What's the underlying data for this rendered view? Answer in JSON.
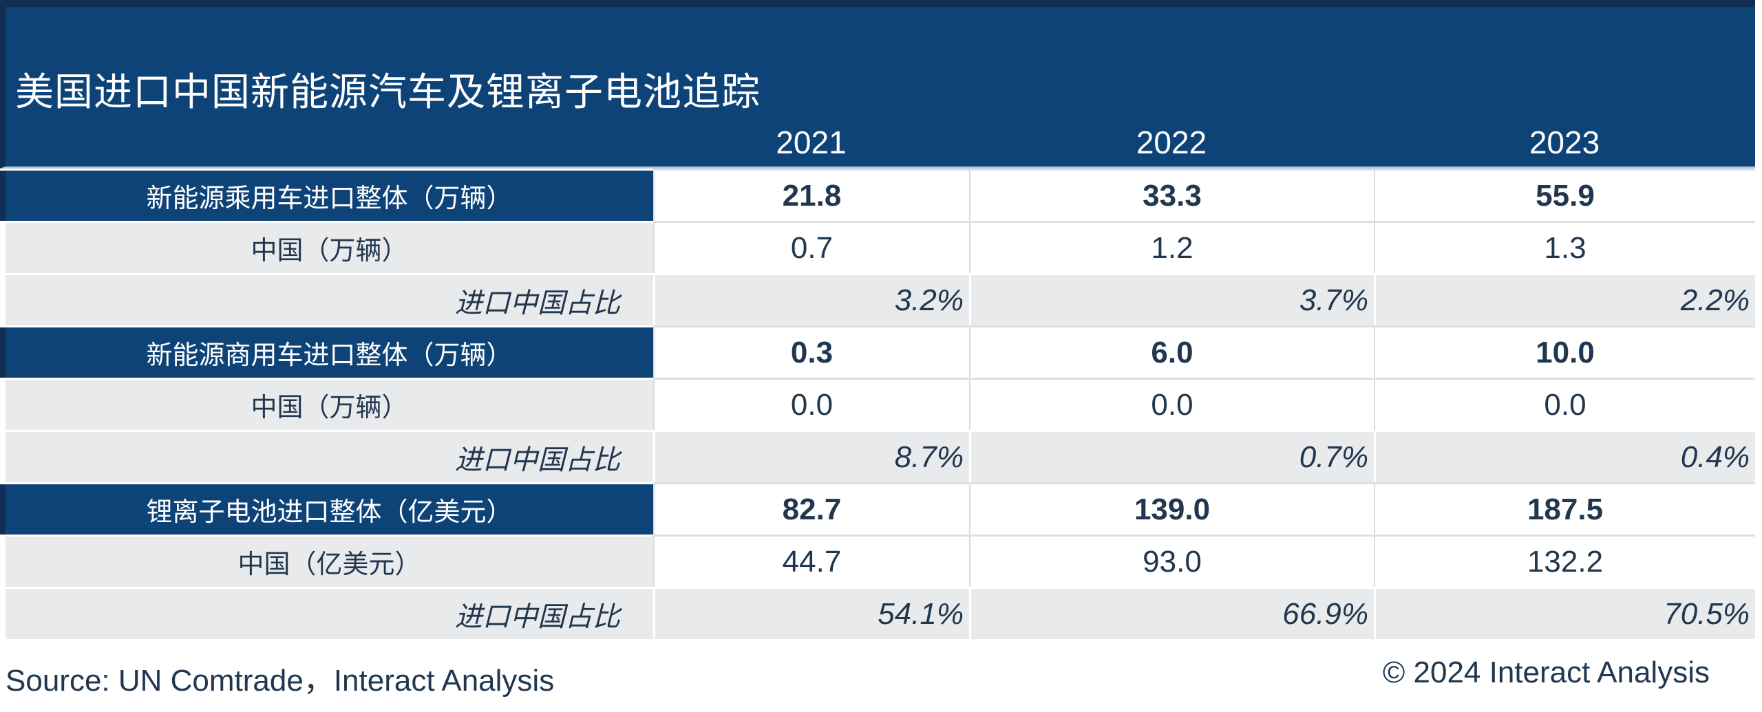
{
  "title": "美国进口中国新能源汽车及锂离子电池追踪",
  "years": [
    "2021",
    "2022",
    "2023"
  ],
  "colors": {
    "header_blue": "#0E4378",
    "border_navy": "#112F55",
    "row_gray": "#E9EAEC",
    "text_navy": "#21374F",
    "cell_border_gray": "#D9DCDF",
    "header_underline": "#AFC3D6",
    "white": "#FFFFFF"
  },
  "table": {
    "sections": [
      {
        "header_label": "新能源乘用车进口整体（万辆）",
        "header_values": [
          "21.8",
          "33.3",
          "55.9"
        ],
        "china_label": "中国（万辆）",
        "china_values": [
          "0.7",
          "1.2",
          "1.3"
        ],
        "share_label": "进口中国占比",
        "share_values": [
          "3.2%",
          "3.7%",
          "2.2%"
        ]
      },
      {
        "header_label": "新能源商用车进口整体（万辆）",
        "header_values": [
          "0.3",
          "6.0",
          "10.0"
        ],
        "china_label": "中国（万辆）",
        "china_values": [
          "0.0",
          "0.0",
          "0.0"
        ],
        "share_label": "进口中国占比",
        "share_values": [
          "8.7%",
          "0.7%",
          "0.4%"
        ]
      },
      {
        "header_label": "锂离子电池进口整体（亿美元）",
        "header_values": [
          "82.7",
          "139.0",
          "187.5"
        ],
        "china_label": "中国（亿美元）",
        "china_values": [
          "44.7",
          "93.0",
          "132.2"
        ],
        "share_label": "进口中国占比",
        "share_values": [
          "54.1%",
          "66.9%",
          "70.5%"
        ]
      }
    ]
  },
  "footer": {
    "source": "Source: UN Comtrade，Interact Analysis",
    "copyright": "© 2024 Interact Analysis"
  },
  "chart_data": {
    "type": "table",
    "title": "美国进口中国新能源汽车及锂离子电池追踪",
    "columns": [
      "",
      "2021",
      "2022",
      "2023"
    ],
    "rows": [
      [
        "新能源乘用车进口整体（万辆）",
        21.8,
        33.3,
        55.9
      ],
      [
        "中国（万辆）",
        0.7,
        1.2,
        1.3
      ],
      [
        "进口中国占比",
        "3.2%",
        "3.7%",
        "2.2%"
      ],
      [
        "新能源商用车进口整体（万辆）",
        0.3,
        6.0,
        10.0
      ],
      [
        "中国（万辆）",
        0.0,
        0.0,
        0.0
      ],
      [
        "进口中国占比",
        "8.7%",
        "0.7%",
        "0.4%"
      ],
      [
        "锂离子电池进口整体（亿美元）",
        82.7,
        139.0,
        187.5
      ],
      [
        "中国（亿美元）",
        44.7,
        93.0,
        132.2
      ],
      [
        "进口中国占比",
        "54.1%",
        "66.9%",
        "70.5%"
      ]
    ],
    "source": "Source: UN Comtrade，Interact Analysis",
    "copyright": "© 2024 Interact Analysis"
  }
}
